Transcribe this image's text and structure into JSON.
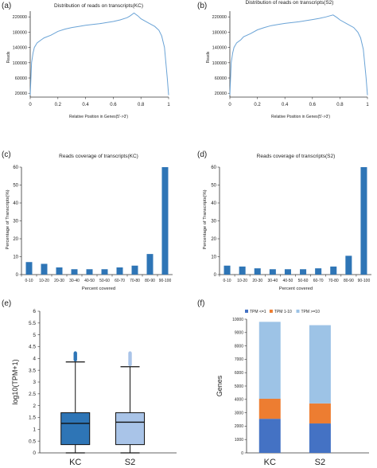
{
  "panels": [
    {
      "letter": "(a)",
      "chart_data": {
        "type": "line",
        "title": "Distribution of reads on transcripts(KC)",
        "xlabel": "Relative Position in Genes(5'->3')",
        "ylabel": "Reads",
        "xlim": [
          0,
          1
        ],
        "ylim": [
          10000,
          235000
        ],
        "xticks": [
          0,
          0.2,
          0.4,
          0.6,
          0.8,
          1
        ],
        "xtick_labels": [
          "0",
          "0.2",
          "0.4",
          "0.6",
          "0.8",
          "1"
        ],
        "yticks": [
          20000,
          60000,
          100000,
          140000,
          180000,
          220000
        ],
        "ytick_labels": [
          "20000",
          "60000",
          "100000",
          "140000",
          "180000",
          "220000"
        ],
        "color": "#6aa3d6",
        "x": [
          0,
          0.005,
          0.01,
          0.02,
          0.03,
          0.05,
          0.08,
          0.1,
          0.15,
          0.2,
          0.25,
          0.3,
          0.35,
          0.4,
          0.45,
          0.5,
          0.55,
          0.6,
          0.65,
          0.7,
          0.72,
          0.75,
          0.78,
          0.8,
          0.85,
          0.9,
          0.93,
          0.95,
          0.97,
          0.99,
          1
        ],
        "y": [
          15000,
          60000,
          100000,
          125000,
          140000,
          152000,
          160000,
          165000,
          172000,
          182000,
          188000,
          192000,
          195000,
          198000,
          200000,
          202000,
          205000,
          208000,
          212000,
          218000,
          222000,
          230000,
          222000,
          215000,
          205000,
          195000,
          185000,
          170000,
          140000,
          60000,
          15000
        ]
      }
    },
    {
      "letter": "(b)",
      "chart_data": {
        "type": "line",
        "title": "Distribution of reads on transcripts(S2)",
        "xlabel": "Relative Position in Genes(5'->3')",
        "ylabel": "Reads",
        "xlim": [
          0,
          1
        ],
        "ylim": [
          10000,
          235000
        ],
        "xticks": [
          0,
          0.2,
          0.4,
          0.6,
          0.8,
          1
        ],
        "xtick_labels": [
          "0",
          "0.2",
          "0.4",
          "0.6",
          "0.8",
          "1"
        ],
        "yticks": [
          20000,
          60000,
          100000,
          140000,
          180000,
          220000
        ],
        "ytick_labels": [
          "20000",
          "60000",
          "100000",
          "140000",
          "180000",
          "220000"
        ],
        "color": "#6aa3d6",
        "x": [
          0,
          0.005,
          0.01,
          0.02,
          0.03,
          0.05,
          0.08,
          0.1,
          0.15,
          0.2,
          0.25,
          0.3,
          0.35,
          0.4,
          0.45,
          0.5,
          0.55,
          0.6,
          0.65,
          0.7,
          0.72,
          0.75,
          0.78,
          0.8,
          0.85,
          0.9,
          0.93,
          0.95,
          0.97,
          0.99,
          1
        ],
        "y": [
          15000,
          60000,
          100000,
          125000,
          140000,
          152000,
          160000,
          168000,
          176000,
          186000,
          192000,
          197000,
          200000,
          203000,
          205000,
          207000,
          210000,
          213000,
          216000,
          220000,
          222000,
          225000,
          218000,
          212000,
          202000,
          192000,
          180000,
          165000,
          135000,
          60000,
          15000
        ]
      }
    },
    {
      "letter": "(c)",
      "chart_data": {
        "type": "bar",
        "title": "Reads coverage of transcripts(KC)",
        "xlabel": "Percent covered",
        "ylabel": "Percentage of Transcripts(%)",
        "ylim": [
          0,
          60
        ],
        "yticks": [
          0,
          10,
          20,
          30,
          40,
          50,
          60
        ],
        "categories": [
          "0-10",
          "10-20",
          "20-30",
          "30-40",
          "40-50",
          "50-60",
          "60-70",
          "70-80",
          "80-90",
          "90-100"
        ],
        "values": [
          7,
          6,
          4,
          3,
          3,
          3,
          4,
          5,
          11.5,
          60
        ],
        "color": "#2e75b6"
      }
    },
    {
      "letter": "(d)",
      "chart_data": {
        "type": "bar",
        "title": "Reads coverage of transcripts(S2)",
        "xlabel": "Percent covered",
        "ylabel": "Percentage of Transcripts(%)",
        "ylim": [
          0,
          60
        ],
        "yticks": [
          0,
          10,
          20,
          30,
          40,
          50,
          60
        ],
        "categories": [
          "0-10",
          "10-20",
          "20-30",
          "30-40",
          "40-50",
          "50-60",
          "60-70",
          "70-80",
          "80-90",
          "90-100"
        ],
        "values": [
          5,
          4.5,
          3.5,
          3,
          3,
          3,
          3.5,
          4.5,
          10.5,
          60
        ],
        "color": "#2e75b6"
      }
    },
    {
      "letter": "(e)",
      "chart_data": {
        "type": "box",
        "ylabel": "log10(TPM+1)",
        "ylim": [
          0,
          6
        ],
        "yticks": [
          0,
          0.5,
          1,
          1.5,
          2,
          2.5,
          3,
          3.5,
          4,
          4.5,
          5,
          5.5,
          6
        ],
        "categories": [
          "KC",
          "S2"
        ],
        "boxes": [
          {
            "q1": 0.35,
            "median": 1.25,
            "q3": 1.7,
            "whisker_low": 0,
            "whisker_high": 3.85,
            "outlier_low": 3.87,
            "outlier_high": 4.3,
            "fill": "#2e75b6"
          },
          {
            "q1": 0.35,
            "median": 1.3,
            "q3": 1.7,
            "whisker_low": 0,
            "whisker_high": 3.65,
            "outlier_low": 3.67,
            "outlier_high": 4.3,
            "fill": "#a9c4e8"
          }
        ]
      }
    },
    {
      "letter": "(f)",
      "chart_data": {
        "type": "bar",
        "stacked": true,
        "ylabel": "Genes",
        "ylim": [
          0,
          10000
        ],
        "yticks": [
          0,
          1000,
          2000,
          3000,
          4000,
          5000,
          6000,
          7000,
          8000,
          9000,
          10000
        ],
        "categories": [
          "KC",
          "S2"
        ],
        "legend": "top",
        "series": [
          {
            "name": "TPM <=1",
            "values": [
              2550,
              2200
            ],
            "color": "#4472c4"
          },
          {
            "name": "TPM 1-10",
            "values": [
              1500,
              1500
            ],
            "color": "#ed7d31"
          },
          {
            "name": "TPM >=10",
            "values": [
              5750,
              5850
            ],
            "color": "#9dc3e6"
          }
        ]
      }
    }
  ]
}
